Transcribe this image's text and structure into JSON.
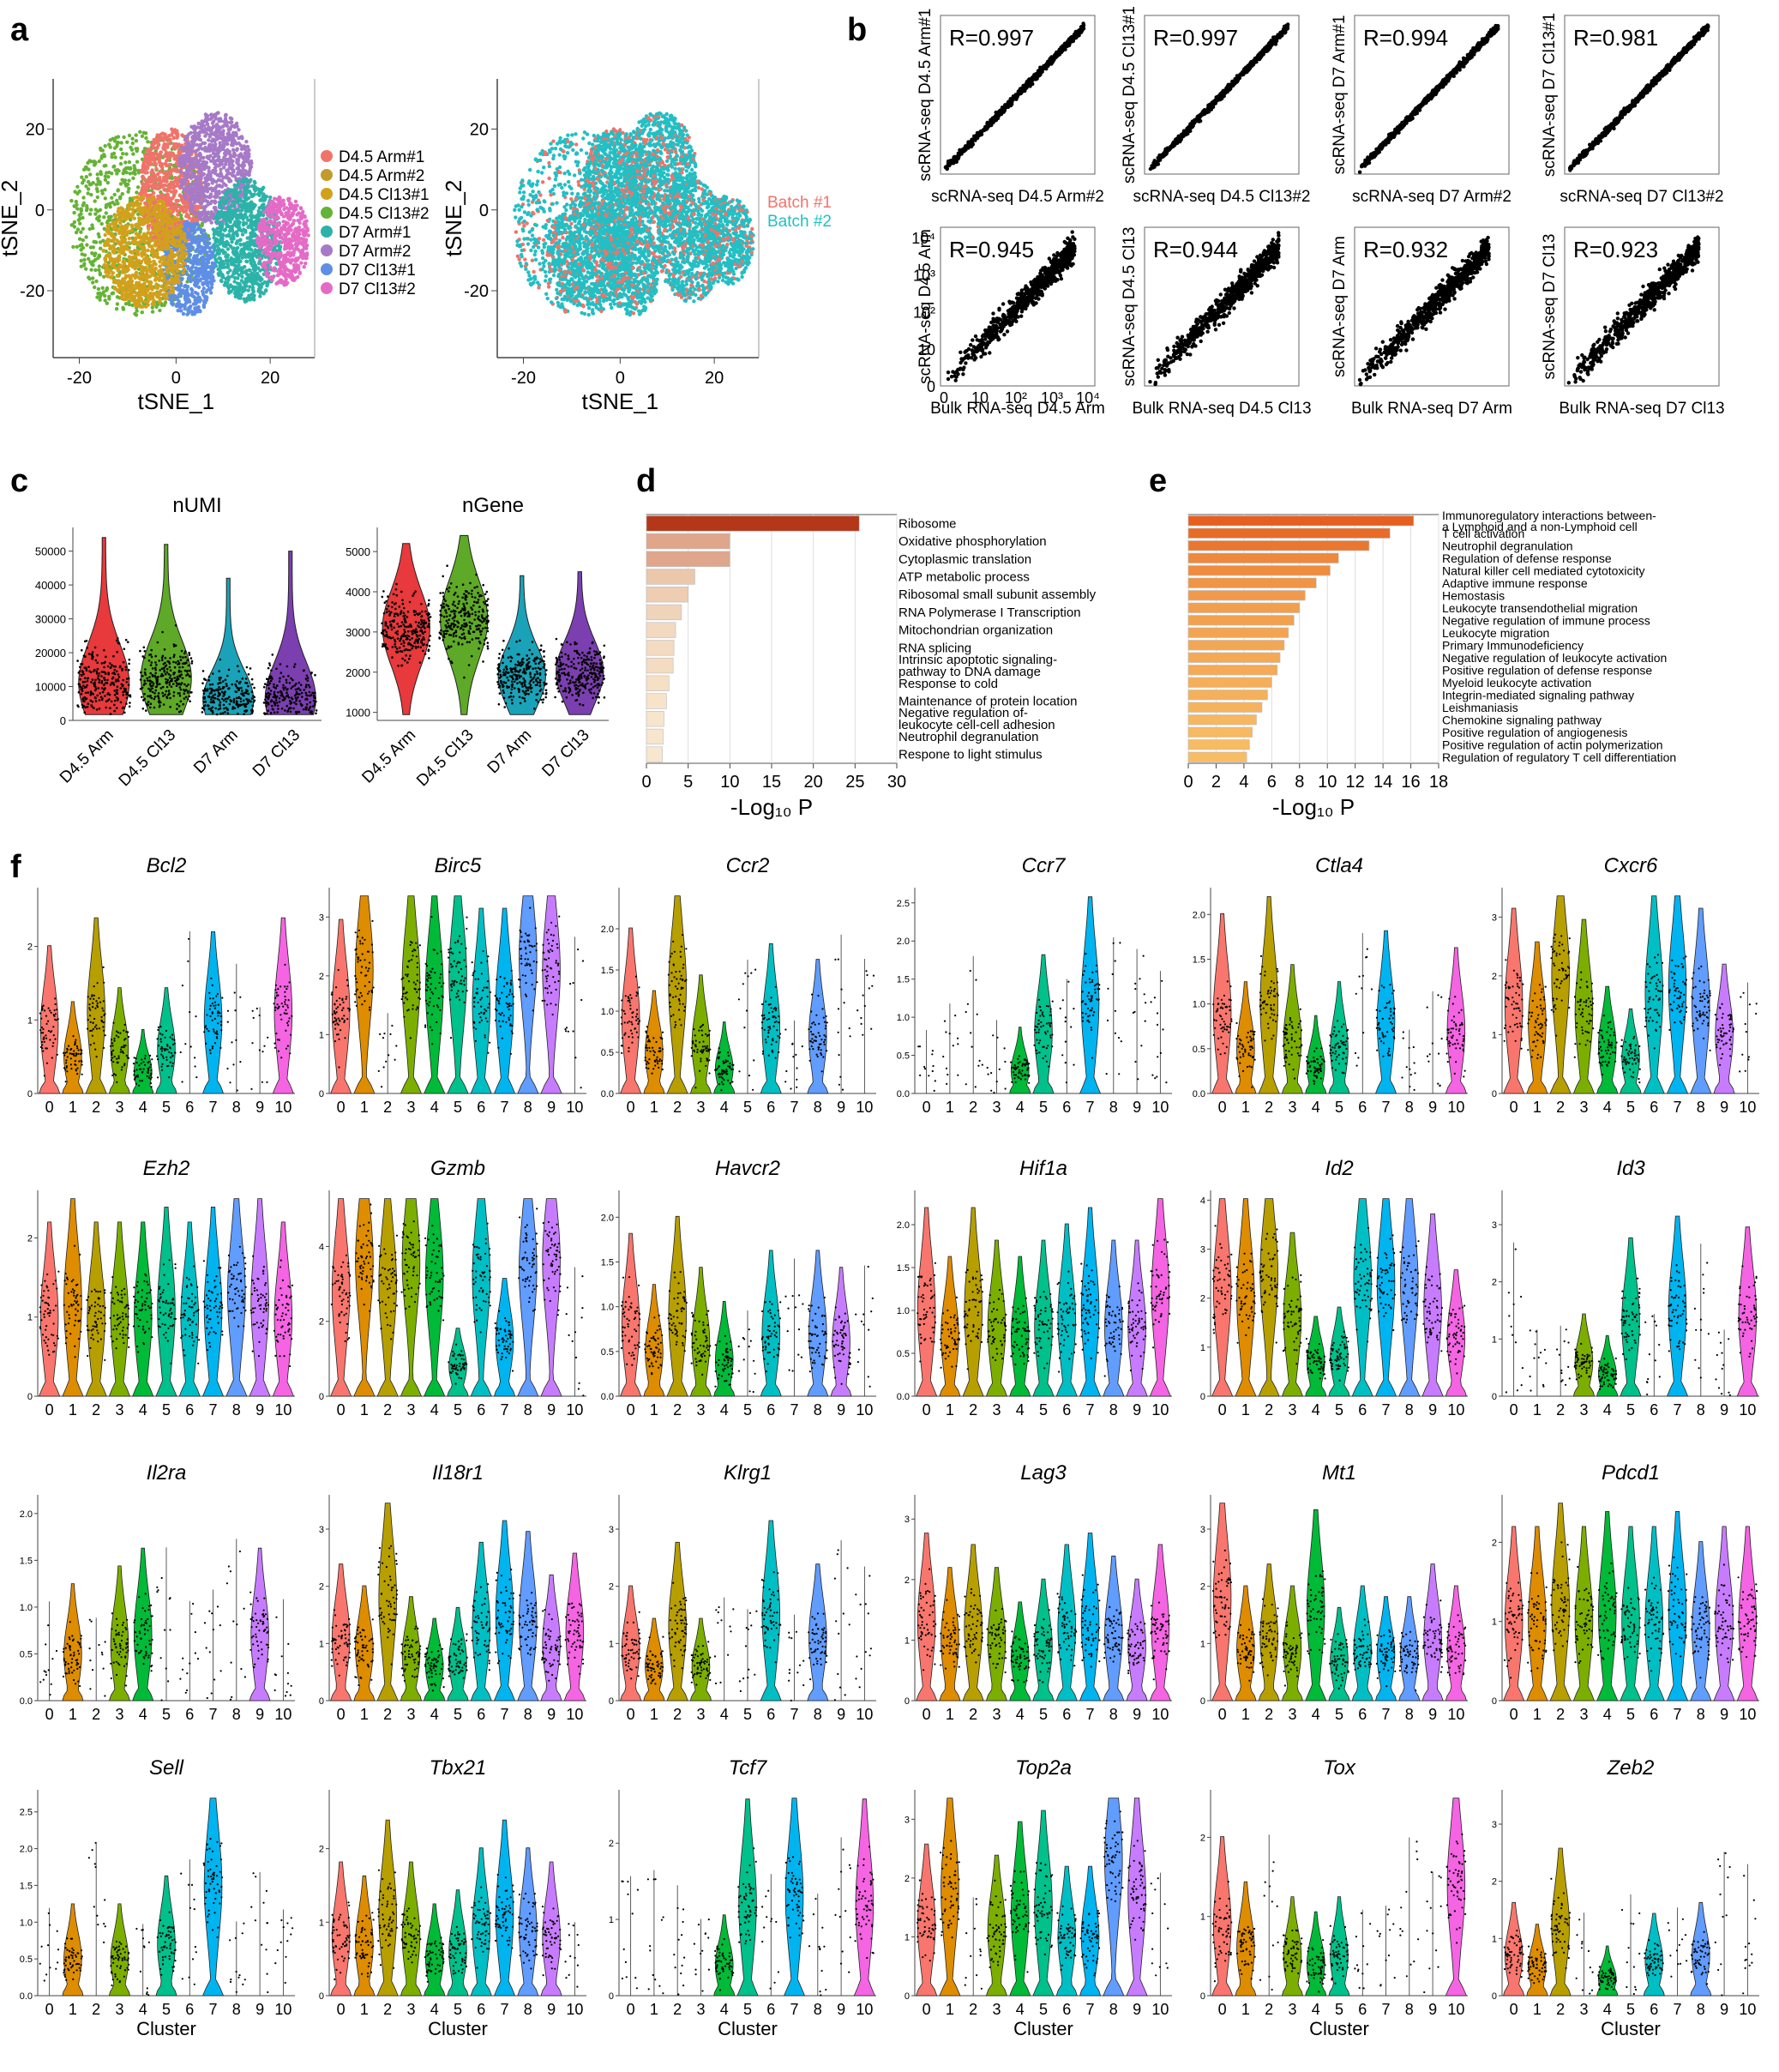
{
  "panels": {
    "a": "a",
    "b": "b",
    "c": "c",
    "d": "d",
    "e": "e",
    "f": "f"
  },
  "chart_data": [
    {
      "id": "a-left",
      "type": "scatter",
      "xlabel": "tSNE_1",
      "ylabel": "tSNE_2",
      "x_ticks": [
        "-20",
        "0",
        "20"
      ],
      "y_ticks": [
        "20",
        "0",
        "-20"
      ],
      "legend": [
        "D4.5 Arm#1",
        "D4.5 Arm#2",
        "D4.5 Cl13#1",
        "D4.5 Cl13#2",
        "D7 Arm#1",
        "D7 Arm#2",
        "D7 Cl13#1",
        "D7 Cl13#2"
      ],
      "legend_colors": [
        "#f0736a",
        "#c39b2a",
        "#d2a11c",
        "#65b336",
        "#2cb3a9",
        "#a67ac7",
        "#5e8ee6",
        "#e56ac6"
      ],
      "legend_position": "right"
    },
    {
      "id": "a-right",
      "type": "scatter",
      "xlabel": "tSNE_1",
      "ylabel": "tSNE_2",
      "x_ticks": [
        "-20",
        "0",
        "20"
      ],
      "y_ticks": [
        "20",
        "0",
        "-20"
      ],
      "legend": [
        "Batch #1",
        "Batch #2"
      ],
      "legend_colors": [
        "#f0736a",
        "#22bfc4"
      ],
      "legend_position": "right"
    },
    {
      "id": "b",
      "type": "scatter",
      "plots": [
        {
          "r": "R=0.997",
          "xlabel": "scRNA-seq D4.5 Arm#2",
          "ylabel": "scRNA-seq D4.5 Arm#1"
        },
        {
          "r": "R=0.997",
          "xlabel": "scRNA-seq D4.5 Cl13#2",
          "ylabel": "scRNA-seq D4.5 Cl13#1"
        },
        {
          "r": "R=0.994",
          "xlabel": "scRNA-seq D7 Arm#2",
          "ylabel": "scRNA-seq D7 Arm#1"
        },
        {
          "r": "R=0.981",
          "xlabel": "scRNA-seq D7 Cl13#2",
          "ylabel": "scRNA-seq D7 Cl13#1"
        },
        {
          "r": "R=0.945",
          "xlabel": "Bulk RNA-seq D4.5 Arm",
          "ylabel": "scRNA-seq D4.5 Arm"
        },
        {
          "r": "R=0.944",
          "xlabel": "Bulk RNA-seq D4.5 Cl13",
          "ylabel": "scRNA-seq D4.5 Cl13"
        },
        {
          "r": "R=0.932",
          "xlabel": "Bulk RNA-seq D7 Arm",
          "ylabel": "scRNA-seq D7 Arm"
        },
        {
          "r": "R=0.923",
          "xlabel": "Bulk RNA-seq D7 Cl13",
          "ylabel": "scRNA-seq D7 Cl13"
        }
      ],
      "log_ticks_y": [
        "10⁴",
        "10³",
        "10²",
        "10",
        "0"
      ],
      "log_ticks_x": [
        "0",
        "10",
        "10²",
        "10³",
        "10⁴"
      ]
    },
    {
      "id": "c-numi",
      "type": "violin",
      "title": "nUMI",
      "categories": [
        "D4.5 Arm",
        "D4.5 Cl13",
        "D7 Arm",
        "D7 Cl13"
      ],
      "colors": [
        "#e8393c",
        "#5ea927",
        "#1aa3b8",
        "#7b3fb0"
      ],
      "y_ticks": [
        0,
        10000,
        20000,
        30000,
        40000,
        50000
      ],
      "ylim": [
        0,
        57000
      ],
      "medians": [
        11000,
        12500,
        6000,
        6500
      ],
      "tops": [
        54000,
        52000,
        42000,
        50000
      ]
    },
    {
      "id": "c-ngene",
      "type": "violin",
      "title": "nGene",
      "categories": [
        "D4.5 Arm",
        "D4.5 Cl13",
        "D7 Arm",
        "D7 Cl13"
      ],
      "colors": [
        "#e8393c",
        "#5ea927",
        "#1aa3b8",
        "#7b3fb0"
      ],
      "y_ticks": [
        1000,
        2000,
        3000,
        4000,
        5000
      ],
      "ylim": [
        800,
        5600
      ],
      "medians": [
        3100,
        3300,
        1900,
        2000
      ],
      "tops": [
        5200,
        5400,
        4400,
        4500
      ]
    },
    {
      "id": "d",
      "type": "bar",
      "orientation": "horizontal",
      "categories": [
        "Ribosome",
        "Oxidative phosphorylation",
        "Cytoplasmic translation",
        "ATP metabolic process",
        "Ribosomal small subunit assembly",
        "RNA Polymerase I Transcription",
        "Mitochondrian organization",
        "RNA splicing",
        "Intrinsic apoptotic signaling-\npathway to DNA damage",
        "Response to cold",
        "Maintenance of protein location",
        "Negative regulation of-\nleukocyte cell-cell adhesion",
        "Neutrophil degranulation",
        "Respone to light stimulus"
      ],
      "values": [
        25.5,
        10,
        10,
        5.8,
        5.0,
        4.2,
        3.5,
        3.3,
        3.2,
        2.7,
        2.4,
        2.1,
        2.0,
        1.9
      ],
      "xlabel": "-Log₁₀ P",
      "x_ticks": [
        0,
        5,
        10,
        15,
        20,
        25,
        30
      ],
      "xlim": [
        0,
        30
      ]
    },
    {
      "id": "e",
      "type": "bar",
      "orientation": "horizontal",
      "categories": [
        "Immunoregulatory interactions between-\na Lymphoid and a non-Lymphoid cell",
        "T cell activation",
        "Neutrophil degranulation",
        "Regulation of defense response",
        "Natural killer cell mediated cytotoxicity",
        "Adaptive immune response",
        "Hemostasis",
        "Leukocyte transendothelial migration",
        "Negative regulation of immune process",
        "Leukocyte migration",
        "Primary Immunodeficiency",
        "Negative regulation of leukocyte activation",
        "Positive regulation of defense response",
        "Myeloid leukocyte activation",
        "Integrin-mediated signaling pathway",
        "Leishmaniasis",
        "Chemokine signaling pathway",
        "Positive regulation of angiogenesis",
        "Positive regulation of actin polymerization",
        "Regulation of regulatory T cell differentiation"
      ],
      "values": [
        16.2,
        14.5,
        13,
        10.8,
        10.2,
        9.2,
        8.4,
        8.0,
        7.6,
        7.2,
        6.9,
        6.6,
        6.4,
        6.0,
        5.7,
        5.3,
        4.9,
        4.6,
        4.4,
        4.2
      ],
      "xlabel": "-Log₁₀ P",
      "x_ticks": [
        0,
        2,
        4,
        6,
        8,
        10,
        12,
        14,
        16,
        18
      ],
      "xlim": [
        0,
        18
      ]
    },
    {
      "id": "f",
      "type": "violin",
      "xlabel": "Cluster",
      "clusters": [
        "0",
        "1",
        "2",
        "3",
        "4",
        "5",
        "6",
        "7",
        "8",
        "9",
        "10"
      ],
      "cluster_colors": [
        "#f8766d",
        "#de8c00",
        "#b79f00",
        "#7cae00",
        "#00ba38",
        "#00c08b",
        "#00bfc4",
        "#00b4f0",
        "#619cff",
        "#c77cff",
        "#f564e3"
      ],
      "genes": [
        {
          "name": "Bcl2",
          "yticks": [
            "0",
            "1",
            "2"
          ],
          "ymax": 2.8,
          "levels": [
            0.9,
            0.5,
            1.1,
            0.6,
            0.3,
            0.6,
            0,
            1.0,
            0,
            0,
            1.1
          ]
        },
        {
          "name": "Birc5",
          "yticks": [
            "0",
            "1",
            "2",
            "3"
          ],
          "ymax": 3.5,
          "levels": [
            1.4,
            2.1,
            0,
            1.9,
            1.8,
            2.0,
            1.5,
            1.5,
            2.3,
            2.1,
            0
          ]
        },
        {
          "name": "Ccr2",
          "yticks": [
            "0.0",
            "0.5",
            "1.0",
            "1.5",
            "2.0"
          ],
          "ymax": 2.5,
          "levels": [
            0.9,
            0.5,
            1.3,
            0.6,
            0.3,
            0,
            0.8,
            0,
            0.7,
            0,
            0
          ]
        },
        {
          "name": "Ccr7",
          "yticks": [
            "0.0",
            "0.5",
            "1.0",
            "1.5",
            "2.0",
            "2.5"
          ],
          "ymax": 2.7,
          "levels": [
            0,
            0,
            0,
            0,
            0.3,
            0.8,
            0,
            1.2,
            0,
            0,
            0
          ]
        },
        {
          "name": "Ctla4",
          "yticks": [
            "0.0",
            "0.5",
            "1.0",
            "1.5",
            "2.0"
          ],
          "ymax": 2.3,
          "levels": [
            0.9,
            0.5,
            1.0,
            0.6,
            0.3,
            0.5,
            0,
            0.8,
            0,
            0,
            0.7
          ]
        },
        {
          "name": "Cxcr6",
          "yticks": [
            "0",
            "1",
            "2",
            "3"
          ],
          "ymax": 3.5,
          "levels": [
            1.5,
            1.2,
            2.0,
            1.4,
            0.8,
            0.6,
            1.7,
            1.8,
            1.5,
            1.0,
            0
          ]
        },
        {
          "name": "Ezh2",
          "yticks": [
            "0",
            "1",
            "2"
          ],
          "ymax": 2.6,
          "levels": [
            1.0,
            1.2,
            1.0,
            1.0,
            1.0,
            1.1,
            1.0,
            1.1,
            1.3,
            1.2,
            1.0
          ]
        },
        {
          "name": "Gzmb",
          "yticks": [
            "0",
            "2",
            "4"
          ],
          "ymax": 5.5,
          "levels": [
            2.8,
            3.6,
            3.0,
            3.6,
            3.2,
            0.8,
            3.2,
            1.5,
            3.4,
            3.6,
            0
          ]
        },
        {
          "name": "Havcr2",
          "yticks": [
            "0.0",
            "0.5",
            "1.0",
            "1.5",
            "2.0"
          ],
          "ymax": 2.3,
          "levels": [
            0.8,
            0.5,
            0.9,
            0.6,
            0.4,
            0,
            0.7,
            0,
            0.7,
            0.6,
            0
          ]
        },
        {
          "name": "Hif1a",
          "yticks": [
            "0.0",
            "0.5",
            "1.0",
            "1.5",
            "2.0"
          ],
          "ymax": 2.4,
          "levels": [
            1.0,
            0.7,
            1.0,
            0.8,
            0.7,
            0.8,
            0.9,
            1.0,
            0.8,
            0.8,
            1.2
          ]
        },
        {
          "name": "Id2",
          "yticks": [
            "0",
            "1",
            "2",
            "3",
            "4"
          ],
          "ymax": 4.2,
          "levels": [
            2.2,
            2.0,
            2.5,
            1.6,
            0.7,
            0.8,
            2.4,
            2.3,
            2.3,
            1.8,
            1.2
          ]
        },
        {
          "name": "Id3",
          "yticks": [
            "0",
            "1",
            "2",
            "3"
          ],
          "ymax": 3.6,
          "levels": [
            0,
            0,
            0,
            0.6,
            0.4,
            1.3,
            0,
            1.5,
            0,
            0,
            1.4
          ]
        },
        {
          "name": "Il2ra",
          "yticks": [
            "0.0",
            "0.5",
            "1.0",
            "1.5",
            "2.0"
          ],
          "ymax": 2.2,
          "levels": [
            0,
            0.5,
            0,
            0.6,
            0.7,
            0,
            0,
            0,
            0,
            0.7,
            0
          ]
        },
        {
          "name": "Il18r1",
          "yticks": [
            "0",
            "1",
            "2",
            "3"
          ],
          "ymax": 3.6,
          "levels": [
            1.1,
            0.9,
            1.8,
            0.8,
            0.6,
            0.7,
            1.3,
            1.5,
            1.4,
            1.0,
            1.2
          ]
        },
        {
          "name": "Klrg1",
          "yticks": [
            "0",
            "1",
            "2",
            "3"
          ],
          "ymax": 3.6,
          "levels": [
            0.9,
            0.6,
            1.3,
            0.6,
            0,
            0,
            1.5,
            0,
            1.1,
            0,
            0
          ]
        },
        {
          "name": "Lag3",
          "yticks": [
            "0",
            "1",
            "2",
            "3"
          ],
          "ymax": 3.4,
          "levels": [
            1.3,
            1.0,
            1.2,
            1.0,
            0.7,
            0.9,
            1.2,
            1.3,
            1.1,
            0.9,
            1.2
          ]
        },
        {
          "name": "Mt1",
          "yticks": [
            "0",
            "1",
            "2",
            "3"
          ],
          "ymax": 3.6,
          "levels": [
            1.8,
            0.9,
            1.1,
            0.9,
            1.6,
            0.7,
            0.9,
            0.8,
            0.8,
            1.1,
            0.9
          ]
        },
        {
          "name": "Pdcd1",
          "yticks": [
            "0",
            "1",
            "2"
          ],
          "ymax": 2.6,
          "levels": [
            1.0,
            1.0,
            1.2,
            1.0,
            1.1,
            1.0,
            1.0,
            1.1,
            0.9,
            1.0,
            1.0
          ]
        },
        {
          "name": "Sell",
          "yticks": [
            "0.0",
            "0.5",
            "1.0",
            "1.5",
            "2.0",
            "2.5"
          ],
          "ymax": 2.8,
          "levels": [
            0,
            0.5,
            0,
            0.5,
            0,
            0.7,
            0,
            1.5,
            0,
            0,
            0
          ]
        },
        {
          "name": "Tbx21",
          "yticks": [
            "0",
            "1",
            "2"
          ],
          "ymax": 2.8,
          "levels": [
            0.8,
            0.7,
            1.1,
            0.8,
            0.5,
            0.6,
            0.9,
            1.1,
            0.9,
            0.8,
            0
          ]
        },
        {
          "name": "Tcf7",
          "yticks": [
            "0",
            "1",
            "2"
          ],
          "ymax": 2.7,
          "levels": [
            0,
            0,
            0,
            0,
            0.4,
            1.2,
            0,
            1.3,
            0,
            0,
            1.2
          ]
        },
        {
          "name": "Top2a",
          "yticks": [
            "0",
            "1",
            "2",
            "3"
          ],
          "ymax": 3.5,
          "levels": [
            1.2,
            1.8,
            0,
            1.1,
            1.4,
            1.5,
            1.0,
            1.0,
            2.3,
            1.7,
            0
          ]
        },
        {
          "name": "Tox",
          "yticks": [
            "0",
            "1",
            "2"
          ],
          "ymax": 2.6,
          "levels": [
            0.9,
            0.6,
            0,
            0.5,
            0.4,
            0.5,
            0,
            0,
            0,
            0,
            1.4
          ]
        },
        {
          "name": "Zeb2",
          "yticks": [
            "0",
            "1",
            "2",
            "3"
          ],
          "ymax": 3.6,
          "levels": [
            0.7,
            0.5,
            1.2,
            0,
            0.3,
            0,
            0.6,
            0,
            0.7,
            0,
            0
          ]
        }
      ]
    }
  ]
}
